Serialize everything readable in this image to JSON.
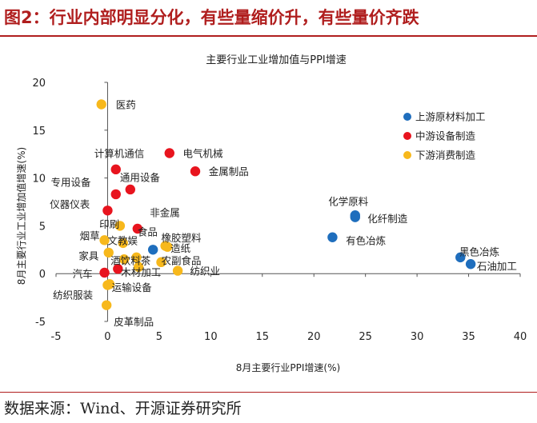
{
  "header": {
    "title": "图2：行业内部明显分化，有些量缩价升，有些量价齐跌"
  },
  "footer": {
    "source": "数据来源：Wind、开源证券研究所"
  },
  "colors": {
    "upstream": "#1f6ebd",
    "midstream": "#e8141e",
    "downstream": "#f7b81c",
    "header": "#b01e1e"
  },
  "chart_data": {
    "type": "scatter",
    "title": "主要行业工业增加值与PPI增速",
    "xlabel": "8月主要行业PPI增速(%)",
    "ylabel": "8月主要行业工业增加值增速(%)",
    "xlim": [
      -5,
      40
    ],
    "ylim": [
      -5,
      20
    ],
    "xticks": [
      -5,
      0,
      5,
      10,
      15,
      20,
      25,
      30,
      35,
      40
    ],
    "yticks": [
      -5,
      0,
      5,
      10,
      15,
      20
    ],
    "legend_position": "top-right",
    "series": [
      {
        "name": "上游原材料加工",
        "color": "#1f6ebd",
        "points": [
          {
            "label": "化学原料",
            "x": 24.0,
            "y": 5.9
          },
          {
            "label": "化纤制造",
            "x": 24.0,
            "y": 6.1
          },
          {
            "label": "有色冶炼",
            "x": 21.8,
            "y": 3.8
          },
          {
            "label": "黑色冶炼",
            "x": 34.2,
            "y": 1.7
          },
          {
            "label": "石油加工",
            "x": 35.2,
            "y": 1.0
          },
          {
            "label": "非金属",
            "x": 4.4,
            "y": 2.5
          }
        ]
      },
      {
        "name": "中游设备制造",
        "color": "#e8141e",
        "points": [
          {
            "label": "电气机械",
            "x": 6.0,
            "y": 12.6
          },
          {
            "label": "金属制品",
            "x": 8.5,
            "y": 10.7
          },
          {
            "label": "计算机通信",
            "x": 0.8,
            "y": 10.9
          },
          {
            "label": "通用设备",
            "x": 2.2,
            "y": 8.8
          },
          {
            "label": "专用设备",
            "x": 0.8,
            "y": 8.3
          },
          {
            "label": "仪器仪表",
            "x": 0.0,
            "y": 6.6
          },
          {
            "label": "汽车",
            "x": -0.3,
            "y": 0.1
          },
          {
            "label": "",
            "x": 2.9,
            "y": 4.7
          },
          {
            "label": "",
            "x": 1.0,
            "y": 0.5
          }
        ]
      },
      {
        "name": "下游消费制造",
        "color": "#f7b81c",
        "points": [
          {
            "label": "医药",
            "x": -0.6,
            "y": 17.7
          },
          {
            "label": "印刷",
            "x": 1.2,
            "y": 5.0
          },
          {
            "label": "烟草",
            "x": -0.3,
            "y": 3.5
          },
          {
            "label": "文教娱",
            "x": 1.5,
            "y": 3.2
          },
          {
            "label": "家具",
            "x": 0.1,
            "y": 2.2
          },
          {
            "label": "酒饮料茶",
            "x": 1.6,
            "y": 1.5
          },
          {
            "label": "食品",
            "x": 2.8,
            "y": 1.7
          },
          {
            "label": "造纸",
            "x": 5.8,
            "y": 2.8
          },
          {
            "label": "橡胶塑料",
            "x": 5.6,
            "y": 2.9
          },
          {
            "label": "农副食品",
            "x": 5.2,
            "y": 1.2
          },
          {
            "label": "木材加工",
            "x": 3.0,
            "y": 0.7
          },
          {
            "label": "纺织业",
            "x": 6.8,
            "y": 0.3
          },
          {
            "label": "运输设备",
            "x": 0.2,
            "y": -1.1
          },
          {
            "label": "纺织服装",
            "x": 0.0,
            "y": -1.2
          },
          {
            "label": "皮革制品",
            "x": -0.1,
            "y": -3.3
          }
        ]
      }
    ],
    "annotations": [
      {
        "text": "医药",
        "x": 0.8,
        "y": 17.7
      },
      {
        "text": "计算机通信",
        "x": -1.3,
        "y": 12.6
      },
      {
        "text": "电气机械",
        "x": 7.3,
        "y": 12.6
      },
      {
        "text": "通用设备",
        "x": 1.2,
        "y": 10.1
      },
      {
        "text": "金属制品",
        "x": 9.8,
        "y": 10.7
      },
      {
        "text": "专用设备",
        "x": -5.5,
        "y": 9.6
      },
      {
        "text": "仪器仪表",
        "x": -5.6,
        "y": 7.3
      },
      {
        "text": "非金属",
        "x": 4.1,
        "y": 6.4
      },
      {
        "text": "印刷",
        "x": -0.8,
        "y": 5.2
      },
      {
        "text": "烟草",
        "x": -2.7,
        "y": 4.0
      },
      {
        "text": "食品",
        "x": 2.9,
        "y": 4.4
      },
      {
        "text": "橡胶塑料",
        "x": 5.2,
        "y": 3.8
      },
      {
        "text": "文教娱",
        "x": 0.0,
        "y": 3.5
      },
      {
        "text": "造纸",
        "x": 6.1,
        "y": 2.7
      },
      {
        "text": "家具",
        "x": -2.8,
        "y": 1.9
      },
      {
        "text": "酒饮料茶",
        "x": 0.3,
        "y": 1.4
      },
      {
        "text": "农副食品",
        "x": 5.2,
        "y": 1.4
      },
      {
        "text": "汽车",
        "x": -3.4,
        "y": 0.0
      },
      {
        "text": "木材加工",
        "x": 1.3,
        "y": 0.2
      },
      {
        "text": "纺织业",
        "x": 8.0,
        "y": 0.3
      },
      {
        "text": "运输设备",
        "x": 0.4,
        "y": -1.4
      },
      {
        "text": "纺织服装",
        "x": -5.3,
        "y": -2.2
      },
      {
        "text": "皮革制品",
        "x": 0.6,
        "y": -5.0
      },
      {
        "text": "化学原料",
        "x": 21.4,
        "y": 7.6
      },
      {
        "text": "化纤制造",
        "x": 25.2,
        "y": 5.8
      },
      {
        "text": "有色冶炼",
        "x": 23.1,
        "y": 3.5
      },
      {
        "text": "黑色冶炼",
        "x": 34.1,
        "y": 2.3
      },
      {
        "text": "石油加工",
        "x": 35.8,
        "y": 0.8
      }
    ]
  }
}
